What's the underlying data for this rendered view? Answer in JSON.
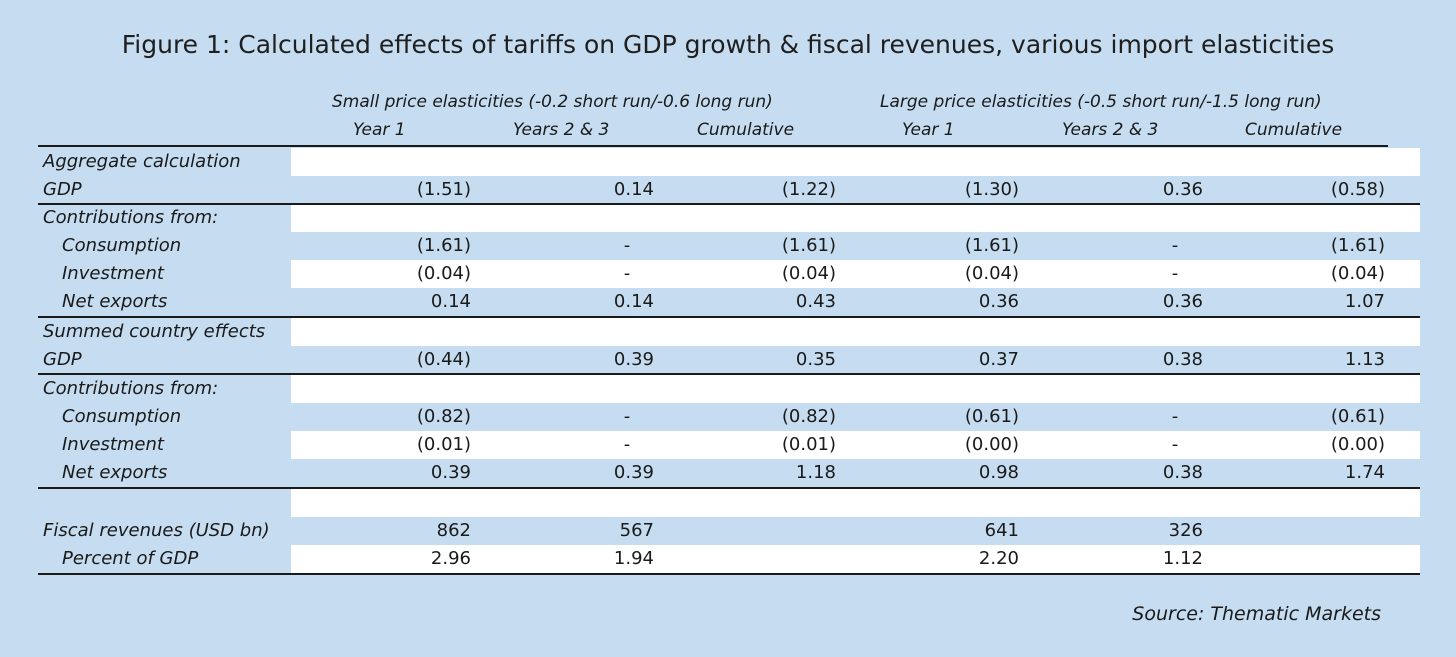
{
  "title": "Figure 1: Calculated effects of tariffs on GDP growth & fiscal revenues, various import elasticities",
  "groups": [
    "Small price elasticities (-0.2 short run/-0.6 long run)",
    "Large price elasticities (-0.5 short run/-1.5 long run)"
  ],
  "columns": [
    "Year 1",
    "Years 2 & 3",
    "Cumulative",
    "Year 1",
    "Years 2 & 3",
    "Cumulative"
  ],
  "rows": [
    {
      "label": "Aggregate calculation",
      "indent": false,
      "values": [
        "",
        "",
        "",
        "",
        "",
        ""
      ]
    },
    {
      "label": "GDP",
      "indent": false,
      "values": [
        "(1.51)",
        "0.14",
        "(1.22)",
        "(1.30)",
        "0.36",
        "(0.58)"
      ]
    },
    {
      "label": "Contributions from:",
      "indent": false,
      "values": [
        "",
        "",
        "",
        "",
        "",
        ""
      ]
    },
    {
      "label": "Consumption",
      "indent": true,
      "values": [
        "(1.61)",
        "-",
        "(1.61)",
        "(1.61)",
        "-",
        "(1.61)"
      ]
    },
    {
      "label": "Investment",
      "indent": true,
      "values": [
        "(0.04)",
        "-",
        "(0.04)",
        "(0.04)",
        "-",
        "(0.04)"
      ]
    },
    {
      "label": "Net exports",
      "indent": true,
      "values": [
        "0.14",
        "0.14",
        "0.43",
        "0.36",
        "0.36",
        "1.07"
      ]
    },
    {
      "label": "Summed country effects",
      "indent": false,
      "values": [
        "",
        "",
        "",
        "",
        "",
        ""
      ]
    },
    {
      "label": "GDP",
      "indent": false,
      "values": [
        "(0.44)",
        "0.39",
        "0.35",
        "0.37",
        "0.38",
        "1.13"
      ]
    },
    {
      "label": "Contributions from:",
      "indent": false,
      "values": [
        "",
        "",
        "",
        "",
        "",
        ""
      ]
    },
    {
      "label": "Consumption",
      "indent": true,
      "values": [
        "(0.82)",
        "-",
        "(0.82)",
        "(0.61)",
        "-",
        "(0.61)"
      ]
    },
    {
      "label": "Investment",
      "indent": true,
      "values": [
        "(0.01)",
        "-",
        "(0.01)",
        "(0.00)",
        "-",
        "(0.00)"
      ]
    },
    {
      "label": "Net exports",
      "indent": true,
      "values": [
        "0.39",
        "0.39",
        "1.18",
        "0.98",
        "0.38",
        "1.74"
      ]
    },
    {
      "label": "",
      "indent": false,
      "values": [
        "",
        "",
        "",
        "",
        "",
        ""
      ]
    },
    {
      "label": "Fiscal revenues (USD bn)",
      "indent": false,
      "values": [
        "862",
        "567",
        "",
        "641",
        "326",
        ""
      ]
    },
    {
      "label": "Percent of GDP",
      "indent": true,
      "values": [
        "2.96",
        "1.94",
        "",
        "2.20",
        "1.12",
        ""
      ]
    }
  ],
  "source": "Source: Thematic Markets"
}
